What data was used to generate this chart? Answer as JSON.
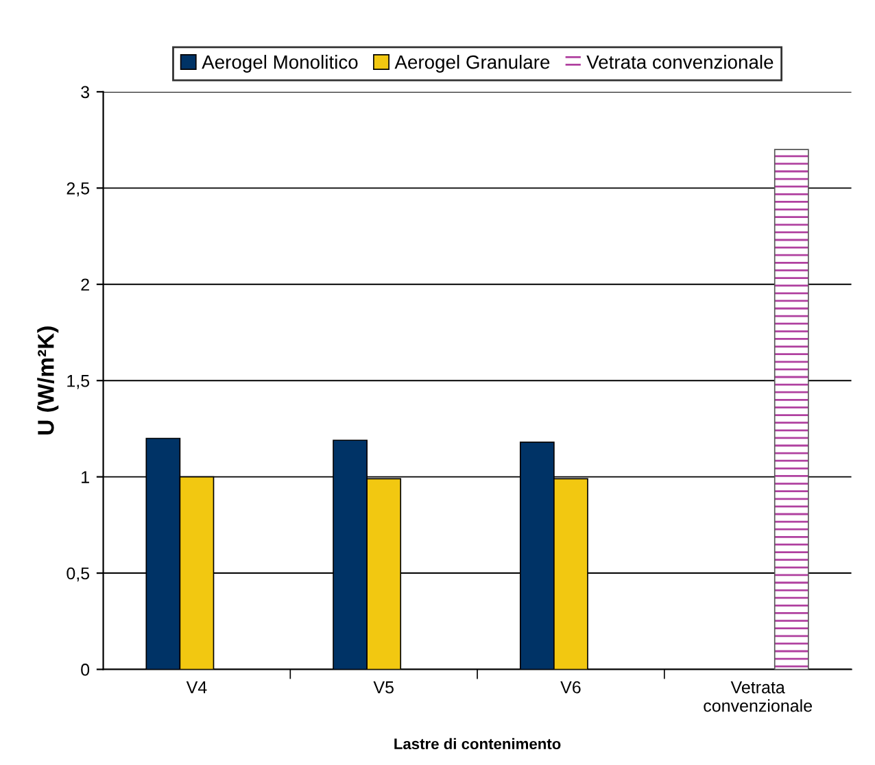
{
  "chart_data": {
    "type": "bar",
    "xlabel": "Lastre di contenimento",
    "ylabel": "U (W/m²K)",
    "categories": [
      "V4",
      "V5",
      "V6",
      "Vetrata convenzionale"
    ],
    "series": [
      {
        "name": "Aerogel Monolitico",
        "color": "#003366",
        "values": [
          1.2,
          1.19,
          1.18,
          null
        ]
      },
      {
        "name": "Aerogel Granulare",
        "color": "#f2c811",
        "values": [
          1.0,
          0.99,
          0.99,
          null
        ]
      },
      {
        "name": "Vetrata convenzionale",
        "color": "#b0409f",
        "values": [
          null,
          null,
          null,
          2.7
        ]
      }
    ],
    "ylim": [
      0,
      3
    ],
    "yticks": [
      0,
      {
        "value": 0.5,
        "label": "0,5"
      },
      1,
      {
        "value": 1.5,
        "label": "1,5"
      },
      2,
      {
        "value": 2.5,
        "label": "2,5"
      },
      3
    ],
    "grid": "y",
    "legend": "top"
  }
}
